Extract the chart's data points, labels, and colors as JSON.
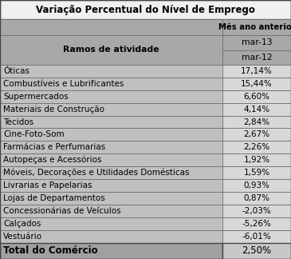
{
  "title": "Variação Percentual do Nível de Emprego",
  "header_col1": "Ramos de atividade",
  "header_col2_top": "Mês ano anterior",
  "header_col2_mid": "mar-13",
  "header_col2_bot": "mar-12",
  "rows": [
    [
      "Óticas",
      "17,14%"
    ],
    [
      "Combustíveis e Lubrificantes",
      "15,44%"
    ],
    [
      "Supermercados",
      "6,60%"
    ],
    [
      "Materiais de Construção",
      "4,14%"
    ],
    [
      "Tecidos",
      "2,84%"
    ],
    [
      "Cine-Foto-Som",
      "2,67%"
    ],
    [
      "Farmácias e Perfumarias",
      "2,26%"
    ],
    [
      "Autopeças e Acessórios",
      "1,92%"
    ],
    [
      "Móveis, Decorações e Utilidades Domésticas",
      "1,59%"
    ],
    [
      "Livrarias e Papelarias",
      "0,93%"
    ],
    [
      "Lojas de Departamentos",
      "0,87%"
    ],
    [
      "Concessionárias de Veículos",
      "-2,03%"
    ],
    [
      "Calçados",
      "-5,26%"
    ],
    [
      "Vestuário",
      "-6,01%"
    ]
  ],
  "total_row": [
    "Total do Comércio",
    "2,50%"
  ],
  "bg_title": "#f0f0f0",
  "bg_header_left": "#a8a8a8",
  "bg_header_right": "#a8a8a8",
  "bg_data_left": "#c0c0c0",
  "bg_data_right": "#d8d8d8",
  "bg_total_left": "#a0a0a0",
  "bg_total_right": "#c8c8c8",
  "col_split": 0.765,
  "title_fontsize": 8.5,
  "header_fontsize": 7.8,
  "data_fontsize": 7.5,
  "border_color": "#707070"
}
